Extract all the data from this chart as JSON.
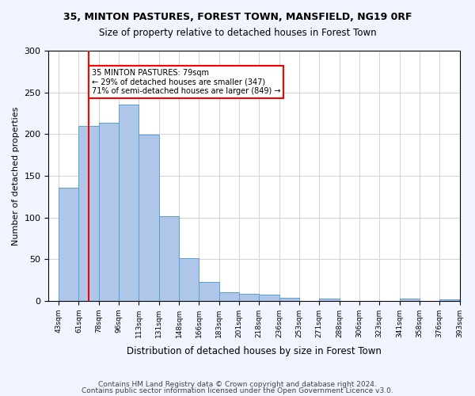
{
  "title1": "35, MINTON PASTURES, FOREST TOWN, MANSFIELD, NG19 0RF",
  "title2": "Size of property relative to detached houses in Forest Town",
  "xlabel": "Distribution of detached houses by size in Forest Town",
  "ylabel": "Number of detached properties",
  "bar_values": [
    136,
    210,
    214,
    235,
    199,
    101,
    51,
    23,
    10,
    8,
    7,
    4,
    0,
    3,
    0,
    0,
    0,
    3,
    0,
    2
  ],
  "bar_labels": [
    "43sqm",
    "61sqm",
    "78sqm",
    "96sqm",
    "113sqm",
    "131sqm",
    "148sqm",
    "166sqm",
    "183sqm",
    "201sqm",
    "218sqm",
    "236sqm",
    "253sqm",
    "271sqm",
    "288sqm",
    "306sqm",
    "323sqm",
    "341sqm",
    "358sqm",
    "376sqm",
    "393sqm"
  ],
  "bar_color": "#aec6e8",
  "bar_edge_color": "#5a9fd4",
  "property_size": 79,
  "property_line_x": 1.5,
  "annotation_text": "35 MINTON PASTURES: 79sqm\n← 29% of detached houses are smaller (347)\n71% of semi-detached houses are larger (849) →",
  "annotation_box_color": "white",
  "annotation_box_edge": "red",
  "red_line_color": "red",
  "ylim": [
    0,
    300
  ],
  "yticks": [
    0,
    50,
    100,
    150,
    200,
    250,
    300
  ],
  "footer1": "Contains HM Land Registry data © Crown copyright and database right 2024.",
  "footer2": "Contains public sector information licensed under the Open Government Licence v3.0.",
  "bg_color": "#f0f4ff",
  "plot_bg_color": "white"
}
